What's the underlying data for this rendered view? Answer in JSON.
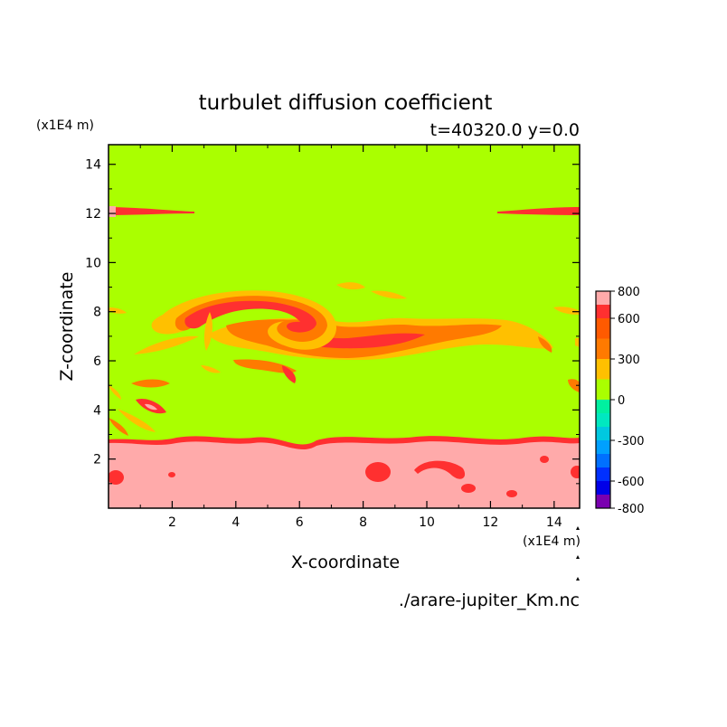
{
  "chart_data": {
    "type": "heatmap",
    "title": "turbulet diffusion coefficient",
    "subtitle": "t=40320.0 y=0.0",
    "xlabel": "X-coordinate",
    "ylabel": "Z-coordinate",
    "x_unit": "(x1E4 m)",
    "y_unit": "(x1E4 m)",
    "xlim": [
      0,
      14.8
    ],
    "ylim": [
      0,
      14.8
    ],
    "x_ticks": [
      2,
      4,
      6,
      8,
      10,
      12,
      14
    ],
    "y_ticks": [
      2,
      4,
      6,
      8,
      10,
      12,
      14
    ],
    "footer": "./arare-jupiter_Km.nc",
    "colorbar": {
      "levels": [
        -800,
        -700,
        -600,
        -500,
        -400,
        -300,
        -200,
        -100,
        0,
        150,
        300,
        450,
        600,
        700,
        800
      ],
      "labels": [
        "800",
        "600",
        "300",
        "0",
        "-300",
        "-600",
        "-800"
      ],
      "colors": [
        "#7a00b0",
        "#0000e8",
        "#0030ff",
        "#0070ff",
        "#00a0ff",
        "#00c8e0",
        "#00e8c0",
        "#00f0a0",
        "#aaff00",
        "#ffc000",
        "#ff7a00",
        "#ff5a00",
        "#ff3030",
        "#ffaaaa"
      ]
    },
    "background_value": 0,
    "lower_layer": {
      "z_top": 3.0,
      "value_range": "700-800",
      "color": "#ffaaaa"
    },
    "features": [
      {
        "name": "eddy-large",
        "x": 4.8,
        "z": 8.0,
        "value": 600
      },
      {
        "name": "elongated-band",
        "x": 9.5,
        "z": 7.0,
        "value": 450
      },
      {
        "name": "layer-12",
        "x": 1.0,
        "z": 12.3,
        "value": 600
      },
      {
        "name": "layer-12-right",
        "x": 13.5,
        "z": 12.3,
        "value": 600
      }
    ]
  }
}
